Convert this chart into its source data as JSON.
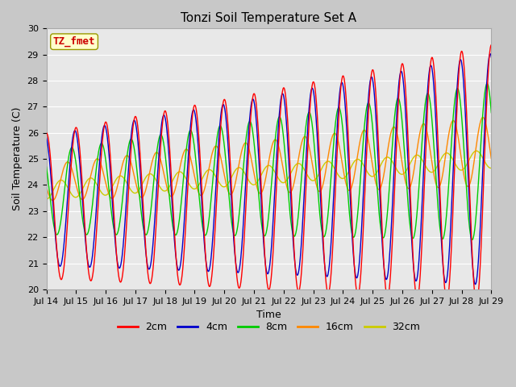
{
  "title": "Tonzi Soil Temperature Set A",
  "xlabel": "Time",
  "ylabel": "Soil Temperature (C)",
  "ylim": [
    20.0,
    30.0
  ],
  "yticks": [
    20.0,
    21.0,
    22.0,
    23.0,
    24.0,
    25.0,
    26.0,
    27.0,
    28.0,
    29.0,
    30.0
  ],
  "xtick_labels": [
    "Jul 14",
    "Jul 15",
    "Jul 16",
    "Jul 17",
    "Jul 18",
    "Jul 19",
    "Jul 20",
    "Jul 21",
    "Jul 22",
    "Jul 23",
    "Jul 24",
    "Jul 25",
    "Jul 26",
    "Jul 27",
    "Jul 28",
    "Jul 29"
  ],
  "colors": {
    "2cm": "#ff0000",
    "4cm": "#0000cc",
    "8cm": "#00cc00",
    "16cm": "#ff8800",
    "32cm": "#cccc00"
  },
  "annotation_text": "TZ_fmet",
  "annotation_color": "#cc0000",
  "annotation_bg": "#ffffcc",
  "annotation_edge": "#999900",
  "fig_bg": "#c8c8c8",
  "axes_bg": "#e8e8e8",
  "grid_color": "#ffffff",
  "title_fontsize": 11,
  "tick_fontsize": 8,
  "axis_label_fontsize": 9
}
